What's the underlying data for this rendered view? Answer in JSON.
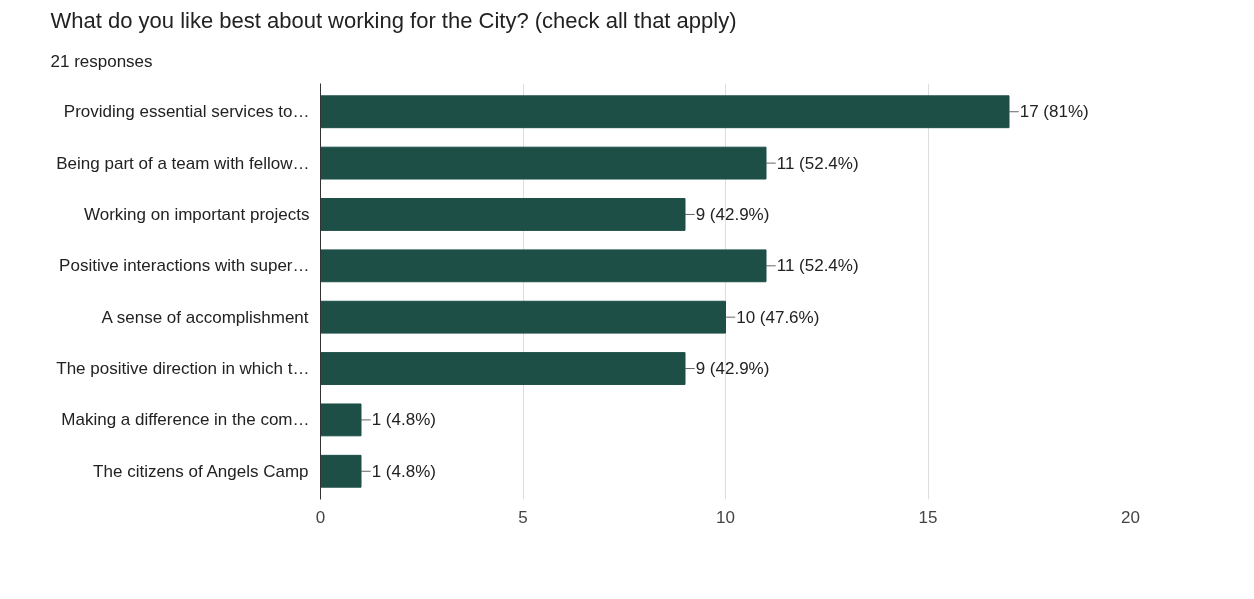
{
  "chart_data": {
    "type": "bar",
    "orientation": "horizontal",
    "title": "What do you like best about working for the City? (check all that apply)",
    "subtitle": "21 responses",
    "categories": [
      "Providing essential services to…",
      "Being part of a team with fellow…",
      "Working on important projects",
      "Positive interactions with super…",
      "A sense of accomplishment",
      "The positive direction in which t…",
      "Making a difference in the com…",
      "The citizens of Angels Camp"
    ],
    "values": [
      17,
      11,
      9,
      11,
      10,
      9,
      1,
      1
    ],
    "value_labels": [
      "17 (81%)",
      "11 (52.4%)",
      "9 (42.9%)",
      "11 (52.4%)",
      "10 (47.6%)",
      "9 (42.9%)",
      "1 (4.8%)",
      "1 (4.8%)"
    ],
    "color": "#1d4f47",
    "xlim": [
      0,
      20
    ],
    "xticks": [
      0,
      5,
      10,
      15,
      20
    ],
    "grid": "x"
  }
}
